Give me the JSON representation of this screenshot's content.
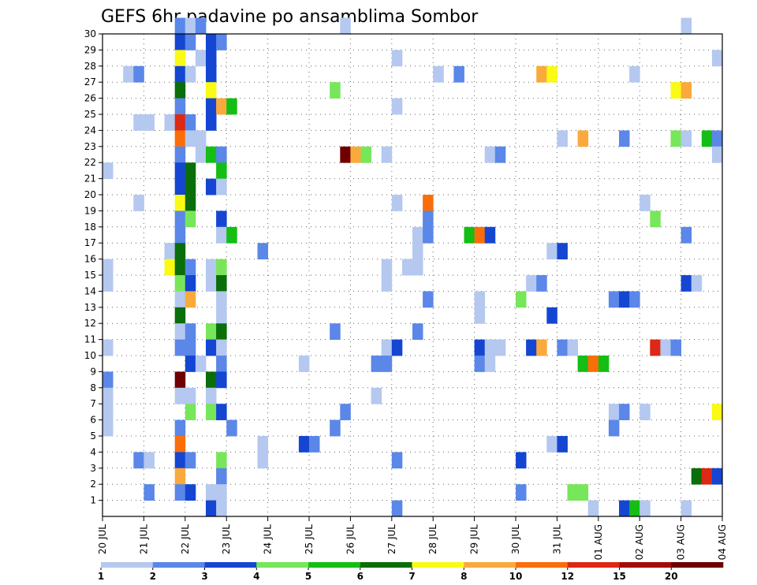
{
  "chart_data": {
    "type": "heatmap",
    "title": "GEFS 6hr padavine po ansamblima Sombor",
    "xlabel": "",
    "ylabel": "",
    "x_ticks": [
      "20 JUL",
      "21 JUL",
      "22 JUL",
      "23 JUL",
      "24 JUL",
      "25 JUL",
      "26 JUL",
      "27 JUL",
      "28 JUL",
      "29 JUL",
      "30 JUL",
      "31 JUL",
      "01 AUG",
      "02 AUG",
      "03 AUG",
      "04 AUG"
    ],
    "x_unit": "6-hour steps (4 per day), 0 = 20 JUL",
    "xlim": [
      0,
      60
    ],
    "y_ticks": [
      1,
      2,
      3,
      4,
      5,
      6,
      7,
      8,
      9,
      10,
      11,
      12,
      13,
      14,
      15,
      16,
      17,
      18,
      19,
      20,
      21,
      22,
      23,
      24,
      25,
      26,
      27,
      28,
      29,
      30
    ],
    "ylim": [
      0,
      30
    ],
    "grid": true,
    "colorbar": {
      "labels": [
        "1",
        "2",
        "3",
        "4",
        "5",
        "6",
        "7",
        "8",
        "10",
        "12",
        "15",
        "20"
      ],
      "colors": [
        "#b4c8f0",
        "#5a87e8",
        "#1446d2",
        "#78e65a",
        "#14be14",
        "#0a6e0a",
        "#fafa14",
        "#faaa3c",
        "#fa6e0a",
        "#dc2814",
        "#a50a0a",
        "#6e0000"
      ]
    },
    "cells": [
      [
        7,
        30,
        1
      ],
      [
        8,
        30,
        0
      ],
      [
        9,
        30,
        1
      ],
      [
        23,
        30,
        0
      ],
      [
        56,
        30,
        0
      ],
      [
        7,
        29,
        2
      ],
      [
        8,
        29,
        1
      ],
      [
        10,
        29,
        2
      ],
      [
        11,
        29,
        1
      ],
      [
        7,
        28,
        6
      ],
      [
        9,
        28,
        0
      ],
      [
        10,
        28,
        2
      ],
      [
        28,
        28,
        0
      ],
      [
        59,
        28,
        0
      ],
      [
        2,
        27,
        0
      ],
      [
        3,
        27,
        1
      ],
      [
        7,
        27,
        2
      ],
      [
        8,
        27,
        0
      ],
      [
        10,
        27,
        2
      ],
      [
        32,
        27,
        0
      ],
      [
        34,
        27,
        1
      ],
      [
        42,
        27,
        7
      ],
      [
        43,
        27,
        6
      ],
      [
        51,
        27,
        0
      ],
      [
        7,
        26,
        5
      ],
      [
        10,
        26,
        6
      ],
      [
        22,
        26,
        3
      ],
      [
        55,
        26,
        6
      ],
      [
        56,
        26,
        7
      ],
      [
        7,
        25,
        1
      ],
      [
        10,
        25,
        2
      ],
      [
        11,
        25,
        7
      ],
      [
        12,
        25,
        4
      ],
      [
        28,
        25,
        0
      ],
      [
        3,
        24,
        0
      ],
      [
        4,
        24,
        0
      ],
      [
        6,
        24,
        0
      ],
      [
        7,
        24,
        9
      ],
      [
        8,
        24,
        1
      ],
      [
        10,
        24,
        2
      ],
      [
        7,
        23,
        8
      ],
      [
        8,
        23,
        0
      ],
      [
        9,
        23,
        0
      ],
      [
        44,
        23,
        0
      ],
      [
        46,
        23,
        7
      ],
      [
        50,
        23,
        1
      ],
      [
        55,
        23,
        3
      ],
      [
        56,
        23,
        0
      ],
      [
        58,
        23,
        4
      ],
      [
        59,
        23,
        1
      ],
      [
        7,
        22,
        1
      ],
      [
        9,
        22,
        0
      ],
      [
        10,
        22,
        4
      ],
      [
        11,
        22,
        1
      ],
      [
        23,
        22,
        11
      ],
      [
        24,
        22,
        7
      ],
      [
        25,
        22,
        3
      ],
      [
        27,
        22,
        0
      ],
      [
        37,
        22,
        0
      ],
      [
        38,
        22,
        1
      ],
      [
        59,
        22,
        0
      ],
      [
        0,
        21,
        0
      ],
      [
        7,
        21,
        2
      ],
      [
        8,
        21,
        5
      ],
      [
        11,
        21,
        4
      ],
      [
        7,
        20,
        2
      ],
      [
        8,
        20,
        5
      ],
      [
        10,
        20,
        2
      ],
      [
        11,
        20,
        0
      ],
      [
        3,
        19,
        0
      ],
      [
        7,
        19,
        6
      ],
      [
        8,
        19,
        5
      ],
      [
        28,
        19,
        0
      ],
      [
        31,
        19,
        8
      ],
      [
        52,
        19,
        0
      ],
      [
        7,
        18,
        1
      ],
      [
        8,
        18,
        3
      ],
      [
        11,
        18,
        2
      ],
      [
        31,
        18,
        1
      ],
      [
        53,
        18,
        3
      ],
      [
        7,
        17,
        1
      ],
      [
        11,
        17,
        0
      ],
      [
        12,
        17,
        4
      ],
      [
        30,
        17,
        0
      ],
      [
        31,
        17,
        1
      ],
      [
        35,
        17,
        4
      ],
      [
        36,
        17,
        8
      ],
      [
        37,
        17,
        2
      ],
      [
        56,
        17,
        1
      ],
      [
        6,
        16,
        0
      ],
      [
        7,
        16,
        5
      ],
      [
        15,
        16,
        1
      ],
      [
        30,
        16,
        0
      ],
      [
        43,
        16,
        0
      ],
      [
        44,
        16,
        2
      ],
      [
        0,
        15,
        0
      ],
      [
        6,
        15,
        6
      ],
      [
        7,
        15,
        5
      ],
      [
        8,
        15,
        1
      ],
      [
        10,
        15,
        0
      ],
      [
        11,
        15,
        3
      ],
      [
        27,
        15,
        0
      ],
      [
        29,
        15,
        0
      ],
      [
        30,
        15,
        0
      ],
      [
        0,
        14,
        0
      ],
      [
        7,
        14,
        3
      ],
      [
        8,
        14,
        2
      ],
      [
        10,
        14,
        0
      ],
      [
        11,
        14,
        5
      ],
      [
        27,
        14,
        0
      ],
      [
        41,
        14,
        0
      ],
      [
        42,
        14,
        1
      ],
      [
        56,
        14,
        2
      ],
      [
        57,
        14,
        0
      ],
      [
        7,
        13,
        0
      ],
      [
        8,
        13,
        7
      ],
      [
        11,
        13,
        0
      ],
      [
        31,
        13,
        1
      ],
      [
        36,
        13,
        0
      ],
      [
        40,
        13,
        3
      ],
      [
        49,
        13,
        1
      ],
      [
        50,
        13,
        2
      ],
      [
        51,
        13,
        1
      ],
      [
        7,
        12,
        5
      ],
      [
        11,
        12,
        0
      ],
      [
        36,
        12,
        0
      ],
      [
        43,
        12,
        2
      ],
      [
        7,
        11,
        0
      ],
      [
        8,
        11,
        1
      ],
      [
        10,
        11,
        3
      ],
      [
        11,
        11,
        5
      ],
      [
        22,
        11,
        1
      ],
      [
        30,
        11,
        1
      ],
      [
        0,
        10,
        0
      ],
      [
        7,
        10,
        1
      ],
      [
        8,
        10,
        1
      ],
      [
        10,
        10,
        2
      ],
      [
        11,
        10,
        0
      ],
      [
        27,
        10,
        0
      ],
      [
        28,
        10,
        2
      ],
      [
        36,
        10,
        2
      ],
      [
        37,
        10,
        0
      ],
      [
        38,
        10,
        0
      ],
      [
        41,
        10,
        2
      ],
      [
        42,
        10,
        7
      ],
      [
        44,
        10,
        1
      ],
      [
        45,
        10,
        0
      ],
      [
        53,
        10,
        9
      ],
      [
        54,
        10,
        0
      ],
      [
        55,
        10,
        1
      ],
      [
        8,
        9,
        2
      ],
      [
        9,
        9,
        0
      ],
      [
        11,
        9,
        1
      ],
      [
        19,
        9,
        0
      ],
      [
        26,
        9,
        1
      ],
      [
        27,
        9,
        1
      ],
      [
        36,
        9,
        1
      ],
      [
        37,
        9,
        0
      ],
      [
        46,
        9,
        4
      ],
      [
        47,
        9,
        8
      ],
      [
        48,
        9,
        4
      ],
      [
        0,
        8,
        1
      ],
      [
        7,
        8,
        11
      ],
      [
        10,
        8,
        5
      ],
      [
        11,
        8,
        2
      ],
      [
        0,
        7,
        0
      ],
      [
        7,
        7,
        0
      ],
      [
        8,
        7,
        0
      ],
      [
        10,
        7,
        0
      ],
      [
        26,
        7,
        0
      ],
      [
        0,
        6,
        0
      ],
      [
        8,
        6,
        3
      ],
      [
        10,
        6,
        3
      ],
      [
        11,
        6,
        2
      ],
      [
        23,
        6,
        1
      ],
      [
        49,
        6,
        0
      ],
      [
        50,
        6,
        1
      ],
      [
        52,
        6,
        0
      ],
      [
        59,
        6,
        6
      ],
      [
        0,
        5,
        0
      ],
      [
        7,
        5,
        1
      ],
      [
        12,
        5,
        1
      ],
      [
        22,
        5,
        1
      ],
      [
        49,
        5,
        1
      ],
      [
        7,
        4,
        8
      ],
      [
        15,
        4,
        0
      ],
      [
        19,
        4,
        2
      ],
      [
        20,
        4,
        1
      ],
      [
        43,
        4,
        0
      ],
      [
        44,
        4,
        2
      ],
      [
        3,
        3,
        1
      ],
      [
        4,
        3,
        0
      ],
      [
        7,
        3,
        2
      ],
      [
        8,
        3,
        1
      ],
      [
        11,
        3,
        3
      ],
      [
        15,
        3,
        0
      ],
      [
        28,
        3,
        1
      ],
      [
        40,
        3,
        2
      ],
      [
        7,
        2,
        7
      ],
      [
        11,
        2,
        1
      ],
      [
        57,
        2,
        5
      ],
      [
        58,
        2,
        9
      ],
      [
        59,
        2,
        2
      ],
      [
        4,
        1,
        1
      ],
      [
        7,
        1,
        1
      ],
      [
        8,
        1,
        2
      ],
      [
        10,
        1,
        0
      ],
      [
        11,
        1,
        0
      ],
      [
        40,
        1,
        1
      ],
      [
        45,
        1,
        3
      ],
      [
        46,
        1,
        3
      ],
      [
        10,
        0,
        2
      ],
      [
        11,
        0,
        0
      ],
      [
        28,
        0,
        1
      ],
      [
        47,
        0,
        0
      ],
      [
        50,
        0,
        2
      ],
      [
        51,
        0,
        4
      ],
      [
        52,
        0,
        0
      ],
      [
        56,
        0,
        0
      ]
    ]
  }
}
